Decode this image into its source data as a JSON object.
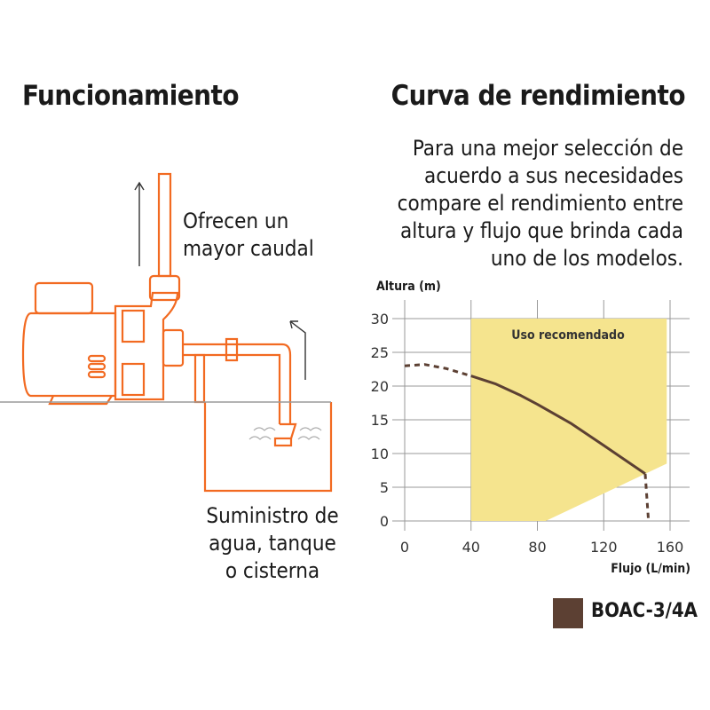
{
  "left": {
    "title": "Funcionamiento",
    "label_flow": [
      "Ofrecen un",
      "mayor caudal"
    ],
    "label_supply": [
      "Suministro de",
      "agua, tanque",
      "o cisterna"
    ],
    "pump_color": "#f26a21"
  },
  "right": {
    "title": "Curva de rendimiento",
    "description": [
      "Para una mejor selección de",
      "acuerdo a sus necesidades",
      "compare el rendimiento entre",
      "altura y flujo que brinda cada",
      "uno de los modelos."
    ]
  },
  "chart_data": {
    "type": "line",
    "xlabel": "Flujo (L/min)",
    "ylabel": "Altura (m)",
    "xlim": [
      0,
      160
    ],
    "ylim": [
      0,
      30
    ],
    "xticks": [
      "0",
      "40",
      "80",
      "120",
      "160"
    ],
    "yticks": [
      "0",
      "5",
      "10",
      "15",
      "20",
      "25",
      "30"
    ],
    "grid": true,
    "legend_position": "bottom-right",
    "region": {
      "label": "Uso recomendado",
      "color": "#f5e48e",
      "polygon": [
        [
          40,
          30
        ],
        [
          158,
          30
        ],
        [
          158,
          8.5
        ],
        [
          85,
          0
        ],
        [
          40,
          0
        ]
      ]
    },
    "series": [
      {
        "name": "BOAC-3/4A",
        "color": "#5c4033",
        "segments": [
          {
            "style": "dashed",
            "points": [
              [
                0,
                23
              ],
              [
                12,
                23.2
              ],
              [
                25,
                22.6
              ],
              [
                40,
                21.5
              ]
            ]
          },
          {
            "style": "solid",
            "points": [
              [
                40,
                21.5
              ],
              [
                55,
                20.3
              ],
              [
                70,
                18.6
              ],
              [
                80,
                17.3
              ],
              [
                100,
                14.5
              ],
              [
                120,
                11.2
              ],
              [
                145,
                7
              ]
            ]
          },
          {
            "style": "dashed",
            "points": [
              [
                145,
                7
              ],
              [
                147,
                0
              ]
            ]
          }
        ]
      }
    ]
  }
}
